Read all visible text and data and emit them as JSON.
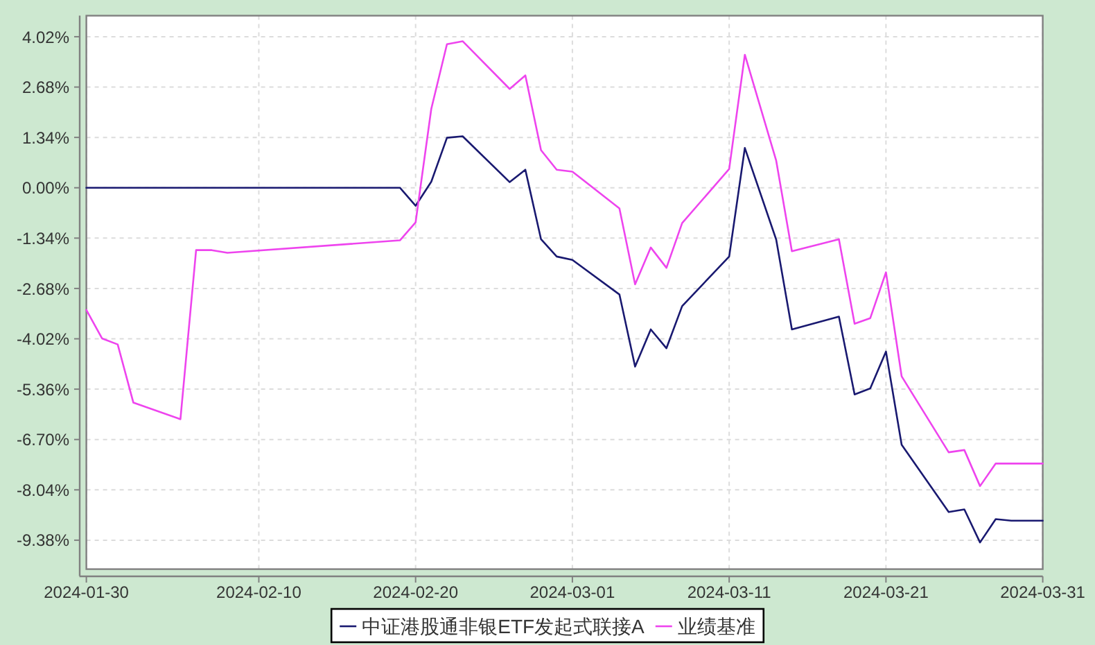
{
  "chart_data": {
    "type": "line",
    "x": [
      "2024-01-30",
      "2024-01-31",
      "2024-02-01",
      "2024-02-02",
      "2024-02-05",
      "2024-02-06",
      "2024-02-07",
      "2024-02-08",
      "2024-02-19",
      "2024-02-20",
      "2024-02-21",
      "2024-02-22",
      "2024-02-23",
      "2024-02-26",
      "2024-02-27",
      "2024-02-28",
      "2024-02-29",
      "2024-03-01",
      "2024-03-04",
      "2024-03-05",
      "2024-03-06",
      "2024-03-07",
      "2024-03-08",
      "2024-03-11",
      "2024-03-12",
      "2024-03-14",
      "2024-03-15",
      "2024-03-18",
      "2024-03-19",
      "2024-03-20",
      "2024-03-21",
      "2024-03-22",
      "2024-03-25",
      "2024-03-26",
      "2024-03-27",
      "2024-03-28",
      "2024-03-29",
      "2024-03-31"
    ],
    "series": [
      {
        "name": "中证港股通非银ETF发起式联接A",
        "color": "#191970",
        "values": [
          0,
          0,
          0,
          0,
          0,
          0,
          0,
          0,
          0,
          -0.48,
          0.16,
          1.33,
          1.37,
          0.15,
          0.48,
          -1.37,
          -1.83,
          -1.92,
          -2.84,
          -4.76,
          -3.77,
          -4.27,
          -3.15,
          -1.83,
          1.06,
          -1.38,
          -3.77,
          -3.43,
          -5.5,
          -5.34,
          -4.36,
          -6.84,
          -8.63,
          -8.56,
          -9.44,
          -8.82,
          -8.86,
          -8.86
        ]
      },
      {
        "name": "业绩基准",
        "color": "#ee44ee",
        "values": [
          -3.25,
          -4.01,
          -4.17,
          -5.72,
          -6.16,
          -1.66,
          -1.66,
          -1.73,
          -1.4,
          -0.92,
          2.1,
          3.82,
          3.9,
          2.63,
          2.99,
          1.0,
          0.48,
          0.43,
          -0.55,
          -2.57,
          -1.59,
          -2.13,
          -0.94,
          0.5,
          3.54,
          0.72,
          -1.69,
          -1.37,
          -3.62,
          -3.47,
          -2.25,
          -5.02,
          -7.04,
          -6.98,
          -7.94,
          -7.34,
          -7.34,
          -7.34
        ]
      }
    ],
    "xlim": [
      "2024-01-30",
      "2024-03-31"
    ],
    "xticks": [
      "2024-01-30",
      "2024-02-10",
      "2024-02-20",
      "2024-03-01",
      "2024-03-11",
      "2024-03-21",
      "2024-03-31"
    ],
    "ylim": [
      -10.15,
      4.58
    ],
    "yticks": [
      {
        "value": 4.02,
        "label": "4.02%"
      },
      {
        "value": 2.68,
        "label": "2.68%"
      },
      {
        "value": 1.34,
        "label": "1.34%"
      },
      {
        "value": 0,
        "label": "0.00%"
      },
      {
        "value": -1.34,
        "label": "-1.34%"
      },
      {
        "value": -2.68,
        "label": "-2.68%"
      },
      {
        "value": -4.02,
        "label": "-4.02%"
      },
      {
        "value": -5.36,
        "label": "-5.36%"
      },
      {
        "value": -6.7,
        "label": "-6.70%"
      },
      {
        "value": -8.04,
        "label": "-8.04%"
      },
      {
        "value": -9.38,
        "label": "-9.38%"
      }
    ],
    "grid": true,
    "legend": "bottom"
  }
}
